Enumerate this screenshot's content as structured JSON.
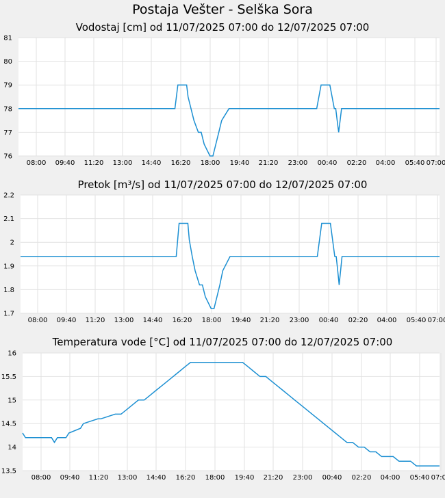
{
  "page": {
    "title": "Postaja Vešter - Selška Sora"
  },
  "x_tick_labels": [
    "08:00",
    "09:40",
    "11:20",
    "13:00",
    "14:40",
    "16:20",
    "18:00",
    "19:40",
    "21:20",
    "23:00",
    "00:40",
    "02:20",
    "04:00",
    "05:40",
    "07:00"
  ],
  "colors": {
    "series": "#1b8fd2",
    "plot_bg": "#ffffff",
    "page_bg": "#f0f0f0",
    "grid": "#e2e2e2"
  },
  "chart_data": [
    {
      "type": "line",
      "title": "Vodostaj [cm] od 11/07/2025 07:00 do 12/07/2025 07:00",
      "xlabel": "",
      "ylabel": "",
      "x_range": [
        "11/07/2025 07:00",
        "12/07/2025 07:00"
      ],
      "ylim": [
        76,
        81
      ],
      "y_ticks": [
        "81",
        "80",
        "79",
        "78",
        "77",
        "76"
      ],
      "grid": true,
      "series": [
        {
          "x": [
            "07:00",
            "15:55",
            "16:05",
            "16:35",
            "16:40",
            "16:50",
            "17:00",
            "17:15",
            "17:25",
            "17:35",
            "17:55",
            "18:05",
            "18:15",
            "18:25",
            "18:35",
            "19:00",
            "00:00",
            "00:15",
            "00:25",
            "00:45",
            "01:00",
            "01:05",
            "01:10",
            "01:15",
            "01:25",
            "01:35",
            "07:00"
          ],
          "values": [
            78,
            78,
            79,
            79,
            78.5,
            78,
            77.5,
            77,
            77,
            76.5,
            76,
            76,
            76.5,
            77,
            77.5,
            78,
            78,
            79,
            79,
            79,
            78,
            78,
            77.5,
            77,
            78,
            78,
            78
          ]
        }
      ]
    },
    {
      "type": "line",
      "title": "Pretok [m³/s] od 11/07/2025 07:00 do 12/07/2025 07:00",
      "xlabel": "",
      "ylabel": "",
      "x_range": [
        "11/07/2025 07:00",
        "12/07/2025 07:00"
      ],
      "ylim": [
        1.7,
        2.2
      ],
      "y_ticks": [
        "2.2",
        "2.1",
        "2",
        "1.9",
        "1.8",
        "1.7"
      ],
      "grid": true,
      "series": [
        {
          "x": [
            "07:00",
            "15:55",
            "16:05",
            "16:35",
            "16:40",
            "16:50",
            "17:00",
            "17:15",
            "17:25",
            "17:35",
            "17:55",
            "18:05",
            "18:15",
            "18:25",
            "18:35",
            "19:00",
            "00:00",
            "00:15",
            "00:25",
            "00:45",
            "01:00",
            "01:05",
            "01:10",
            "01:15",
            "01:25",
            "01:35",
            "07:00"
          ],
          "values": [
            1.94,
            1.94,
            2.08,
            2.08,
            2.01,
            1.94,
            1.88,
            1.82,
            1.82,
            1.77,
            1.72,
            1.72,
            1.77,
            1.82,
            1.88,
            1.94,
            1.94,
            2.08,
            2.08,
            2.08,
            1.94,
            1.94,
            1.88,
            1.82,
            1.94,
            1.94,
            1.94
          ]
        }
      ]
    },
    {
      "type": "line",
      "title": "Temperatura vode [°C] od 11/07/2025 07:00 do 12/07/2025 07:00",
      "xlabel": "",
      "ylabel": "",
      "x_range": [
        "11/07/2025 07:00",
        "12/07/2025 07:00"
      ],
      "ylim": [
        13.5,
        16
      ],
      "y_ticks": [
        "16",
        "15.5",
        "15",
        "14.5",
        "14",
        "13.5"
      ],
      "grid": true,
      "series": [
        {
          "x": [
            "07:00",
            "07:10",
            "08:00",
            "08:40",
            "08:50",
            "09:00",
            "09:30",
            "09:40",
            "10:20",
            "10:30",
            "11:20",
            "11:30",
            "12:20",
            "12:40",
            "13:00",
            "13:20",
            "13:40",
            "14:00",
            "14:20",
            "14:40",
            "15:00",
            "15:20",
            "15:40",
            "16:00",
            "16:20",
            "16:40",
            "17:00",
            "17:20",
            "18:00",
            "18:20",
            "19:00",
            "19:40",
            "20:00",
            "20:20",
            "20:40",
            "21:00",
            "21:20",
            "21:40",
            "22:00",
            "22:20",
            "22:40",
            "23:00",
            "23:20",
            "23:40",
            "00:00",
            "00:20",
            "00:40",
            "01:00",
            "01:20",
            "01:40",
            "02:00",
            "02:20",
            "02:40",
            "03:00",
            "03:20",
            "03:40",
            "04:00",
            "04:20",
            "04:40",
            "05:00",
            "05:20",
            "05:40",
            "06:00",
            "06:20",
            "06:40",
            "06:50",
            "07:00"
          ],
          "values": [
            14.3,
            14.2,
            14.2,
            14.2,
            14.1,
            14.2,
            14.2,
            14.3,
            14.4,
            14.5,
            14.6,
            14.6,
            14.7,
            14.7,
            14.8,
            14.9,
            15.0,
            15.0,
            15.1,
            15.2,
            15.3,
            15.4,
            15.5,
            15.6,
            15.7,
            15.8,
            15.8,
            15.8,
            15.8,
            15.8,
            15.8,
            15.8,
            15.7,
            15.6,
            15.5,
            15.5,
            15.4,
            15.3,
            15.2,
            15.1,
            15.0,
            14.9,
            14.8,
            14.7,
            14.6,
            14.5,
            14.4,
            14.3,
            14.2,
            14.1,
            14.1,
            14.0,
            14.0,
            13.9,
            13.9,
            13.8,
            13.8,
            13.8,
            13.7,
            13.7,
            13.7,
            13.6,
            13.6,
            13.6,
            13.6,
            13.6,
            13.6
          ]
        }
      ]
    }
  ]
}
